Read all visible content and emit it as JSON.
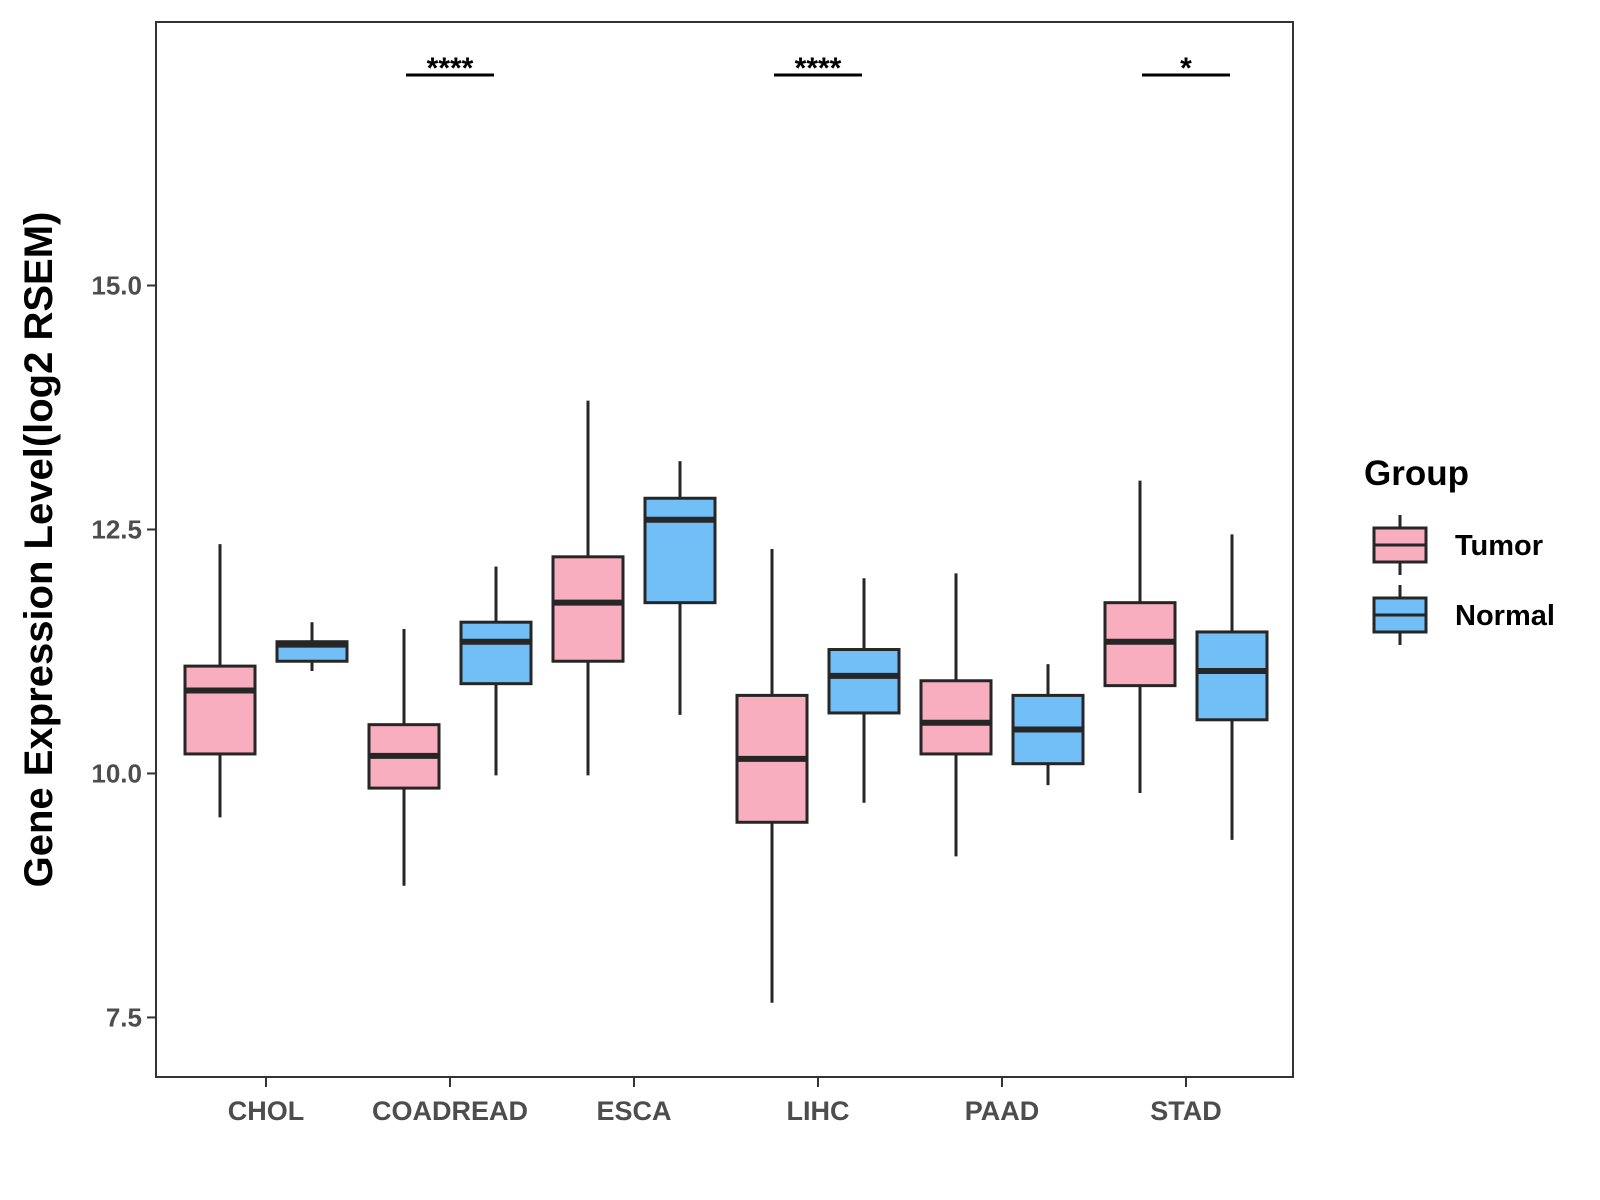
{
  "chart_data": {
    "type": "boxplot",
    "title": "",
    "xlabel": "",
    "ylabel": "Gene Expression Level(log2 RSEM)",
    "ylim": [
      6.9,
      17.7
    ],
    "yticks": [
      7.5,
      10.0,
      12.5,
      15.0
    ],
    "ytick_labels": [
      "7.5",
      "10.0",
      "12.5",
      "15.0"
    ],
    "grid": false,
    "categories": [
      "CHOL",
      "COADREAD",
      "ESCA",
      "LIHC",
      "PAAD",
      "STAD"
    ],
    "legend": {
      "title": "Group",
      "position": "right",
      "entries": [
        {
          "name": "Tumor",
          "color": "#F9AEC0"
        },
        {
          "name": "Normal",
          "color": "#72BEF7"
        }
      ]
    },
    "series": [
      {
        "name": "Tumor",
        "color": "#F9AEC0",
        "boxes": [
          {
            "min": 9.55,
            "q1": 10.2,
            "median": 10.85,
            "q3": 11.1,
            "max": 12.35
          },
          {
            "min": 8.85,
            "q1": 9.85,
            "median": 10.18,
            "q3": 10.5,
            "max": 11.48
          },
          {
            "min": 9.98,
            "q1": 11.15,
            "median": 11.75,
            "q3": 12.22,
            "max": 13.82
          },
          {
            "min": 7.65,
            "q1": 9.5,
            "median": 10.15,
            "q3": 10.8,
            "max": 12.3
          },
          {
            "min": 9.15,
            "q1": 10.2,
            "median": 10.52,
            "q3": 10.95,
            "max": 12.05
          },
          {
            "min": 9.8,
            "q1": 10.9,
            "median": 11.35,
            "q3": 11.75,
            "max": 13.0
          }
        ]
      },
      {
        "name": "Normal",
        "color": "#72BEF7",
        "boxes": [
          {
            "min": 11.05,
            "q1": 11.15,
            "median": 11.32,
            "q3": 11.35,
            "max": 11.55
          },
          {
            "min": 9.98,
            "q1": 10.92,
            "median": 11.35,
            "q3": 11.55,
            "max": 12.12
          },
          {
            "min": 10.6,
            "q1": 11.75,
            "median": 12.6,
            "q3": 12.82,
            "max": 13.2
          },
          {
            "min": 9.7,
            "q1": 10.62,
            "median": 11.0,
            "q3": 11.27,
            "max": 12.0
          },
          {
            "min": 9.88,
            "q1": 10.1,
            "median": 10.45,
            "q3": 10.8,
            "max": 11.12
          },
          {
            "min": 9.32,
            "q1": 10.55,
            "median": 11.05,
            "q3": 11.45,
            "max": 12.45
          }
        ]
      }
    ],
    "annotations": [
      {
        "category": "COADREAD",
        "label": "****"
      },
      {
        "category": "LIHC",
        "label": "****"
      },
      {
        "category": "STAD",
        "label": "*"
      }
    ]
  }
}
